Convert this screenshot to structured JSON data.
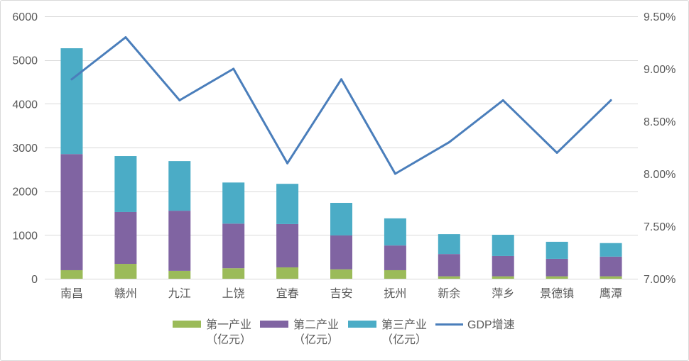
{
  "chart_data": {
    "type": "bar",
    "stacked": true,
    "categories": [
      "南昌",
      "赣州",
      "九江",
      "上饶",
      "宜春",
      "吉安",
      "抚州",
      "新余",
      "萍乡",
      "景德镇",
      "鹰潭"
    ],
    "series": [
      {
        "name": "第一产业（亿元）",
        "type": "bar",
        "axis": "left",
        "color": "#9BBB59",
        "values": [
          195,
          340,
          180,
          240,
          260,
          215,
          195,
          55,
          55,
          55,
          55
        ]
      },
      {
        "name": "第二产业（亿元）",
        "type": "bar",
        "axis": "left",
        "color": "#8064A2",
        "values": [
          2655,
          1185,
          1375,
          1020,
          990,
          775,
          565,
          510,
          465,
          400,
          450
        ]
      },
      {
        "name": "第三产业（亿元）",
        "type": "bar",
        "axis": "left",
        "color": "#4BACC6",
        "values": [
          2420,
          1280,
          1135,
          940,
          920,
          745,
          620,
          455,
          485,
          390,
          310
        ]
      },
      {
        "name": "GDP增速",
        "type": "line",
        "axis": "right",
        "color": "#4A7EBB",
        "values": [
          8.9,
          9.3,
          8.7,
          9.0,
          8.1,
          8.9,
          8.0,
          8.3,
          8.7,
          8.2,
          8.7
        ]
      }
    ],
    "y_left": {
      "ylim": [
        0,
        6000
      ],
      "ticks": [
        0,
        1000,
        2000,
        3000,
        4000,
        5000,
        6000
      ]
    },
    "y_right": {
      "ylim": [
        7.0,
        9.5
      ],
      "ticks": [
        "7.00%",
        "7.50%",
        "8.00%",
        "8.50%",
        "9.00%",
        "9.50%"
      ]
    },
    "grid": true,
    "legend": "bottom"
  }
}
